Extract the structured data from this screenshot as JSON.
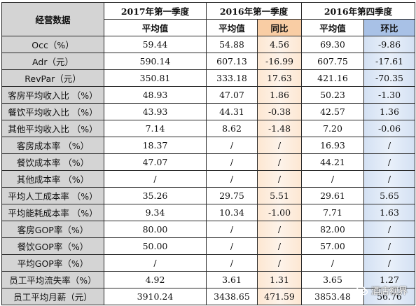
{
  "header": {
    "label_col": "经营数据",
    "groups": [
      "2017年第一季度",
      "2016年第一季度",
      "2016年第四季度"
    ],
    "subcols": [
      "平均值",
      "平均值",
      "同比",
      "平均值",
      "环比"
    ]
  },
  "rows": [
    {
      "label": "Occ（%）",
      "v2017": "59.44",
      "v2016q1": "54.88",
      "yoy": "4.56",
      "v2016q4": "69.30",
      "qoq": "-9.86",
      "yoy_neg": false,
      "qoq_neg": true
    },
    {
      "label": "Adr（元）",
      "v2017": "590.14",
      "v2016q1": "607.13",
      "yoy": "-16.99",
      "v2016q4": "607.75",
      "qoq": "-17.61",
      "yoy_neg": true,
      "qoq_neg": true
    },
    {
      "label": "RevPar（元）",
      "v2017": "350.81",
      "v2016q1": "333.18",
      "yoy": "17.63",
      "v2016q4": "421.16",
      "qoq": "-70.35",
      "yoy_neg": false,
      "qoq_neg": true
    },
    {
      "label": "客房平均收入比 （%）",
      "v2017": "48.93",
      "v2016q1": "47.07",
      "yoy": "1.86",
      "v2016q4": "50.23",
      "qoq": "-1.30",
      "yoy_neg": false,
      "qoq_neg": true
    },
    {
      "label": "餐饮平均收入比 （%）",
      "v2017": "43.93",
      "v2016q1": "44.31",
      "yoy": "-0.38",
      "v2016q4": "42.57",
      "qoq": "1.36",
      "yoy_neg": true,
      "qoq_neg": false
    },
    {
      "label": "其他平均收入比 （%）",
      "v2017": "7.14",
      "v2016q1": "8.62",
      "yoy": "-1.48",
      "v2016q4": "7.20",
      "qoq": "-0.06",
      "yoy_neg": true,
      "qoq_neg": true
    },
    {
      "label": "客房成本率 （%）",
      "v2017": "18.37",
      "v2016q1": "/",
      "yoy": "/",
      "v2016q4": "16.93",
      "qoq": "/",
      "yoy_neg": false,
      "qoq_neg": false
    },
    {
      "label": "餐饮成本率 （%）",
      "v2017": "47.07",
      "v2016q1": "/",
      "yoy": "/",
      "v2016q4": "44.21",
      "qoq": "/",
      "yoy_neg": false,
      "qoq_neg": false
    },
    {
      "label": "其他成本率 （%）",
      "v2017": "/",
      "v2016q1": "/",
      "yoy": "/",
      "v2016q4": "/",
      "qoq": "/",
      "yoy_neg": false,
      "qoq_neg": false
    },
    {
      "label": "平均人工成本率 （%）",
      "v2017": "35.26",
      "v2016q1": "29.75",
      "yoy": "5.51",
      "v2016q4": "29.61",
      "qoq": "5.65",
      "yoy_neg": false,
      "qoq_neg": false
    },
    {
      "label": "平均能耗成本率 （%）",
      "v2017": "9.34",
      "v2016q1": "10.34",
      "yoy": "-1.00",
      "v2016q4": "7.71",
      "qoq": "1.63",
      "yoy_neg": true,
      "qoq_neg": false
    },
    {
      "label": "客房GOP率（%）",
      "v2017": "80.00",
      "v2016q1": "/",
      "yoy": "/",
      "v2016q4": "82.00",
      "qoq": "/",
      "yoy_neg": false,
      "qoq_neg": false
    },
    {
      "label": "餐饮GOP率（%）",
      "v2017": "50.00",
      "v2016q1": "/",
      "yoy": "/",
      "v2016q4": "57.00",
      "qoq": "/",
      "yoy_neg": false,
      "qoq_neg": false
    },
    {
      "label": "平均GOP率（%）",
      "v2017": "/",
      "v2016q1": "/",
      "yoy": "/",
      "v2016q4": "/",
      "qoq": "/",
      "yoy_neg": false,
      "qoq_neg": false
    },
    {
      "label": "员工平均流失率（%）",
      "v2017": "4.92",
      "v2016q1": "3.61",
      "yoy": "1.31",
      "v2016q4": "3.65",
      "qoq": "1.27",
      "yoy_neg": false,
      "qoq_neg": false
    },
    {
      "label": "员工平均月薪（元）",
      "v2017": "3910.24",
      "v2016q1": "3438.65",
      "yoy": "471.59",
      "v2016q4": "3853.48",
      "qoq": "56.76",
      "yoy_neg": false,
      "qoq_neg": false
    }
  ],
  "watermark": {
    "text": "酒店视界",
    "icon": "wechat-icon"
  },
  "colors": {
    "label_bg": "#d4d4d4",
    "yoy_head": "#f9cda4",
    "qoq_head": "#a8c1e6",
    "negative": "#d8243a"
  }
}
